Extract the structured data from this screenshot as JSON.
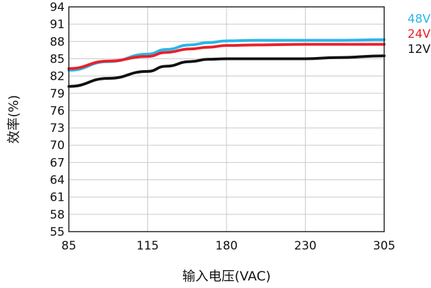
{
  "chart_data": {
    "type": "line",
    "xlabel": "输入电压(VAC)",
    "ylabel": "效率(%)",
    "xlim": [
      85,
      305
    ],
    "ylim": [
      55,
      94
    ],
    "x_ticks": [
      85,
      115,
      180,
      230,
      305
    ],
    "y_ticks": [
      55,
      58,
      61,
      64,
      67,
      70,
      73,
      76,
      79,
      82,
      85,
      88,
      91,
      94
    ],
    "grid": true,
    "legend_position": "right",
    "series": [
      {
        "name": "48V",
        "color": "#29b6e8",
        "x": [
          85,
          100,
          115,
          130,
          150,
          165,
          180,
          200,
          230,
          260,
          305
        ],
        "y": [
          83.0,
          84.5,
          85.8,
          86.6,
          87.4,
          87.8,
          88.1,
          88.2,
          88.2,
          88.2,
          88.3
        ]
      },
      {
        "name": "24V",
        "color": "#e8202a",
        "x": [
          85,
          100,
          115,
          130,
          150,
          165,
          180,
          200,
          230,
          260,
          305
        ],
        "y": [
          83.3,
          84.6,
          85.4,
          86.1,
          86.7,
          87.0,
          87.3,
          87.4,
          87.5,
          87.5,
          87.5
        ]
      },
      {
        "name": "12V",
        "color": "#111111",
        "x": [
          85,
          100,
          115,
          130,
          150,
          165,
          180,
          200,
          230,
          260,
          305
        ],
        "y": [
          80.2,
          81.6,
          82.8,
          83.7,
          84.5,
          84.9,
          85.0,
          85.0,
          85.0,
          85.2,
          85.5
        ]
      }
    ]
  }
}
